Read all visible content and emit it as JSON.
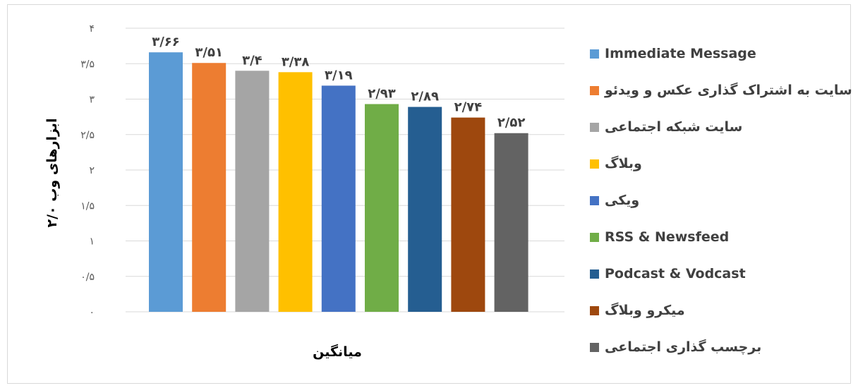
{
  "chart_data": {
    "type": "bar",
    "xlabel": "میانگین",
    "ylabel": "ابزارهای وب ۲/۰",
    "ylim": [
      0,
      4
    ],
    "yticks": [
      0,
      0.5,
      1,
      1.5,
      2,
      2.5,
      3,
      3.5,
      4
    ],
    "ytick_labels": [
      "۰",
      "۰/۵",
      "۱",
      "۱/۵",
      "۲",
      "۲/۵",
      "۳",
      "۳/۵",
      "۴"
    ],
    "grid": true,
    "legend_position": "right",
    "categories": [
      "Immediate Message",
      "سایت به اشتراک گذاری عکس و ویدئو",
      "سایت شبکه اجتماعی",
      "وبلاگ",
      "ویکی",
      "RSS & Newsfeed",
      "Podcast & Vodcast",
      "میکرو وبلاگ",
      "برچسب گذاری اجتماعی"
    ],
    "values": [
      3.66,
      3.51,
      3.4,
      3.38,
      3.19,
      2.93,
      2.89,
      2.74,
      2.52
    ],
    "value_labels": [
      "۳/۶۶",
      "۳/۵۱",
      "۳/۴",
      "۳/۳۸",
      "۳/۱۹",
      "۲/۹۳",
      "۲/۸۹",
      "۲/۷۴",
      "۲/۵۲"
    ],
    "colors": [
      "#5b9bd5",
      "#ed7d31",
      "#a5a5a5",
      "#ffc000",
      "#4472c4",
      "#70ad47",
      "#255e91",
      "#9e480e",
      "#636363"
    ]
  }
}
